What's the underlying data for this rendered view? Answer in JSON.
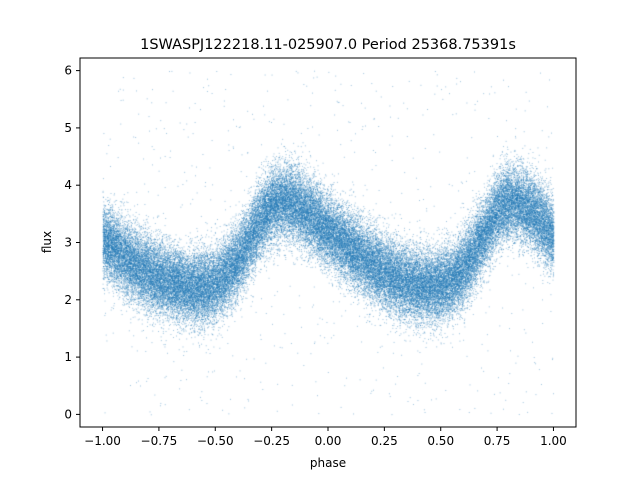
{
  "chart_data": {
    "type": "scatter",
    "title": "1SWASPJ122218.11-025907.0 Period 25368.75391s",
    "xlabel": "phase",
    "ylabel": "flux",
    "xlim": [
      -1.1,
      1.1
    ],
    "ylim": [
      -0.22,
      6.22
    ],
    "xticks": [
      -1.0,
      -0.75,
      -0.5,
      -0.25,
      0.0,
      0.25,
      0.5,
      0.75,
      1.0
    ],
    "xtick_labels": [
      "−1.00",
      "−0.75",
      "−0.50",
      "−0.25",
      "0.00",
      "0.25",
      "0.50",
      "0.75",
      "1.00"
    ],
    "yticks": [
      0,
      1,
      2,
      3,
      4,
      5,
      6
    ],
    "ytick_labels": [
      "0",
      "1",
      "2",
      "3",
      "4",
      "5",
      "6"
    ],
    "grid": false,
    "marker_color": "#1f77b4",
    "series": [
      {
        "phase": [
          -1.0,
          -0.95,
          -0.9,
          -0.85,
          -0.8,
          -0.75,
          -0.7,
          -0.65,
          -0.6,
          -0.55,
          -0.5,
          -0.45,
          -0.4,
          -0.35,
          -0.3,
          -0.25,
          -0.2,
          -0.15,
          -0.1,
          -0.05,
          0.0,
          0.05,
          0.1,
          0.15,
          0.2,
          0.25,
          0.3,
          0.35,
          0.4,
          0.45,
          0.5,
          0.55,
          0.6,
          0.65,
          0.7,
          0.75,
          0.8,
          0.85,
          0.9,
          0.95,
          1.0
        ],
        "flux_center": [
          3.05,
          2.9,
          2.75,
          2.6,
          2.48,
          2.38,
          2.3,
          2.25,
          2.22,
          2.22,
          2.3,
          2.45,
          2.7,
          3.05,
          3.4,
          3.65,
          3.72,
          3.68,
          3.55,
          3.38,
          3.2,
          3.05,
          2.9,
          2.75,
          2.6,
          2.48,
          2.38,
          2.3,
          2.25,
          2.22,
          2.25,
          2.35,
          2.55,
          2.85,
          3.2,
          3.55,
          3.72,
          3.68,
          3.55,
          3.35,
          3.1
        ],
        "flux_scatter": 0.45,
        "point_count": 60000,
        "outlier_range": [
          0.0,
          6.0
        ]
      }
    ]
  }
}
